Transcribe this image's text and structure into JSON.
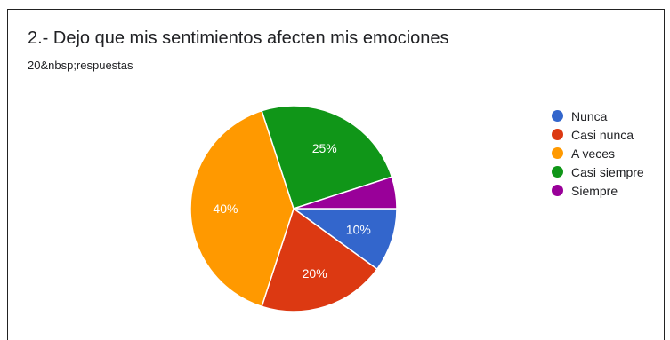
{
  "header": {
    "title": "2.- Dejo que mis sentimientos afecten mis emociones",
    "subtitle": "20&nbsp;respuestas"
  },
  "chart_data": {
    "type": "pie",
    "title": "2.- Dejo que mis sentimientos afecten mis emociones",
    "subtitle": "20&nbsp;respuestas",
    "categories": [
      "Nunca",
      "Casi nunca",
      "A veces",
      "Casi siempre",
      "Siempre"
    ],
    "values": [
      10,
      20,
      40,
      25,
      5
    ],
    "value_labels": [
      "10%",
      "20%",
      "40%",
      "25%",
      ""
    ],
    "colors": [
      "#3366cc",
      "#dc3912",
      "#ff9900",
      "#109618",
      "#990099"
    ],
    "legend_position": "right",
    "label_color": "#ffffff"
  }
}
